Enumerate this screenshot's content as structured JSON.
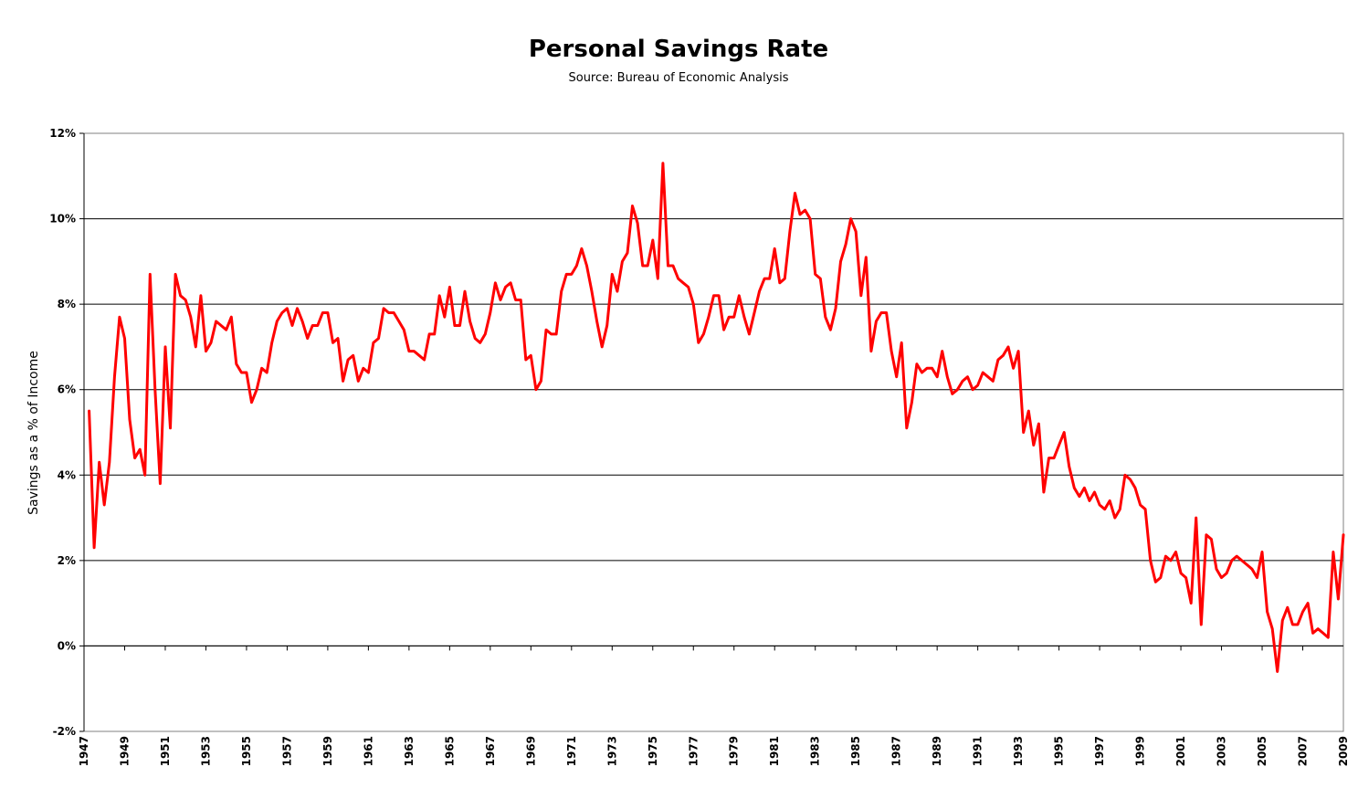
{
  "chart_data": {
    "type": "line",
    "title": "Personal Savings Rate",
    "subtitle": "Source: Bureau of Economic Analysis",
    "xlabel": "",
    "ylabel": "Savings as a % of Income",
    "ylim": [
      -2,
      12
    ],
    "xlim": [
      1947,
      2009
    ],
    "y_ticks": [
      -2,
      0,
      2,
      4,
      6,
      8,
      10,
      12
    ],
    "y_tick_labels": [
      "-2%",
      "0%",
      "2%",
      "4%",
      "6%",
      "8%",
      "10%",
      "12%"
    ],
    "x_ticks": [
      1947,
      1949,
      1951,
      1953,
      1955,
      1957,
      1959,
      1961,
      1963,
      1965,
      1967,
      1969,
      1971,
      1973,
      1975,
      1977,
      1979,
      1981,
      1983,
      1985,
      1987,
      1989,
      1991,
      1993,
      1995,
      1997,
      1999,
      2001,
      2003,
      2005,
      2007,
      2009
    ],
    "x_tick_labels": [
      "1947",
      "1949",
      "1951",
      "1953",
      "1955",
      "1957",
      "1959",
      "1961",
      "1963",
      "1965",
      "1967",
      "1969",
      "1971",
      "1973",
      "1975",
      "1977",
      "1979",
      "1981",
      "1983",
      "1985",
      "1987",
      "1989",
      "1991",
      "1993",
      "1995",
      "1997",
      "1999",
      "2001",
      "2003",
      "2005",
      "2007",
      "2009"
    ],
    "grid": "horizontal",
    "line_color": "#ff0000",
    "series": [
      {
        "name": "",
        "x": [
          1947.25,
          1947.5,
          1947.75,
          1948.0,
          1948.25,
          1948.5,
          1948.75,
          1949.0,
          1949.25,
          1949.5,
          1949.75,
          1950.0,
          1950.25,
          1950.5,
          1950.75,
          1951.0,
          1951.25,
          1951.5,
          1951.75,
          1952.0,
          1952.25,
          1952.5,
          1952.75,
          1953.0,
          1953.25,
          1953.5,
          1953.75,
          1954.0,
          1954.25,
          1954.5,
          1954.75,
          1955.0,
          1955.25,
          1955.5,
          1955.75,
          1956.0,
          1956.25,
          1956.5,
          1956.75,
          1957.0,
          1957.25,
          1957.5,
          1957.75,
          1958.0,
          1958.25,
          1958.5,
          1958.75,
          1959.0,
          1959.25,
          1959.5,
          1959.75,
          1960.0,
          1960.25,
          1960.5,
          1960.75,
          1961.0,
          1961.25,
          1961.5,
          1961.75,
          1962.0,
          1962.25,
          1962.5,
          1962.75,
          1963.0,
          1963.25,
          1963.5,
          1963.75,
          1964.0,
          1964.25,
          1964.5,
          1964.75,
          1965.0,
          1965.25,
          1965.5,
          1965.75,
          1966.0,
          1966.25,
          1966.5,
          1966.75,
          1967.0,
          1967.25,
          1967.5,
          1967.75,
          1968.0,
          1968.25,
          1968.5,
          1968.75,
          1969.0,
          1969.25,
          1969.5,
          1969.75,
          1970.0,
          1970.25,
          1970.5,
          1970.75,
          1971.0,
          1971.25,
          1971.5,
          1971.75,
          1972.0,
          1972.25,
          1972.5,
          1972.75,
          1973.0,
          1973.25,
          1973.5,
          1973.75,
          1974.0,
          1974.25,
          1974.5,
          1974.75,
          1975.0,
          1975.25,
          1975.5,
          1975.75,
          1976.0,
          1976.25,
          1976.5,
          1976.75,
          1977.0,
          1977.25,
          1977.5,
          1977.75,
          1978.0,
          1978.25,
          1978.5,
          1978.75,
          1979.0,
          1979.25,
          1979.5,
          1979.75,
          1980.0,
          1980.25,
          1980.5,
          1980.75,
          1981.0,
          1981.25,
          1981.5,
          1981.75,
          1982.0,
          1982.25,
          1982.5,
          1982.75,
          1983.0,
          1983.25,
          1983.5,
          1983.75,
          1984.0,
          1984.25,
          1984.5,
          1984.75,
          1985.0,
          1985.25,
          1985.5,
          1985.75,
          1986.0,
          1986.25,
          1986.5,
          1986.75,
          1987.0,
          1987.25,
          1987.5,
          1987.75,
          1988.0,
          1988.25,
          1988.5,
          1988.75,
          1989.0,
          1989.25,
          1989.5,
          1989.75,
          1990.0,
          1990.25,
          1990.5,
          1990.75,
          1991.0,
          1991.25,
          1991.5,
          1991.75,
          1992.0,
          1992.25,
          1992.5,
          1992.75,
          1993.0,
          1993.25,
          1993.5,
          1993.75,
          1994.0,
          1994.25,
          1994.5,
          1994.75,
          1995.0,
          1995.25,
          1995.5,
          1995.75,
          1996.0,
          1996.25,
          1996.5,
          1996.75,
          1997.0,
          1997.25,
          1997.5,
          1997.75,
          1998.0,
          1998.25,
          1998.5,
          1998.75,
          1999.0,
          1999.25,
          1999.5,
          1999.75,
          2000.0,
          2000.25,
          2000.5,
          2000.75,
          2001.0,
          2001.25,
          2001.5,
          2001.75,
          2002.0,
          2002.25,
          2002.5,
          2002.75,
          2003.0,
          2003.25,
          2003.5,
          2003.75,
          2004.0,
          2004.25,
          2004.5,
          2004.75,
          2005.0,
          2005.25,
          2005.5,
          2005.75,
          2006.0,
          2006.25,
          2006.5,
          2006.75,
          2007.0,
          2007.25,
          2007.5,
          2007.75,
          2008.0,
          2008.25,
          2008.5,
          2008.75,
          2009.0
        ],
        "values": [
          5.5,
          2.3,
          4.3,
          3.3,
          4.3,
          6.3,
          7.7,
          7.2,
          5.3,
          4.4,
          4.6,
          4.0,
          8.7,
          6.0,
          3.8,
          7.0,
          5.1,
          8.7,
          8.2,
          8.1,
          7.7,
          7.0,
          8.2,
          6.9,
          7.1,
          7.6,
          7.5,
          7.4,
          7.7,
          6.6,
          6.4,
          6.4,
          5.7,
          6.0,
          6.5,
          6.4,
          7.1,
          7.6,
          7.8,
          7.9,
          7.5,
          7.9,
          7.6,
          7.2,
          7.5,
          7.5,
          7.8,
          7.8,
          7.1,
          7.2,
          6.2,
          6.7,
          6.8,
          6.2,
          6.5,
          6.4,
          7.1,
          7.2,
          7.9,
          7.8,
          7.8,
          7.6,
          7.4,
          6.9,
          6.9,
          6.8,
          6.7,
          7.3,
          7.3,
          8.2,
          7.7,
          8.4,
          7.5,
          7.5,
          8.3,
          7.6,
          7.2,
          7.1,
          7.3,
          7.8,
          8.5,
          8.1,
          8.4,
          8.5,
          8.1,
          8.1,
          6.7,
          6.8,
          6.0,
          6.2,
          7.4,
          7.3,
          7.3,
          8.3,
          8.7,
          8.7,
          8.9,
          9.3,
          8.9,
          8.3,
          7.6,
          7.0,
          7.5,
          8.7,
          8.3,
          9.0,
          9.2,
          10.3,
          9.9,
          8.9,
          8.9,
          9.5,
          8.6,
          11.3,
          8.9,
          8.9,
          8.6,
          8.5,
          8.4,
          8.0,
          7.1,
          7.3,
          7.7,
          8.2,
          8.2,
          7.4,
          7.7,
          7.7,
          8.2,
          7.7,
          7.3,
          7.8,
          8.3,
          8.6,
          8.6,
          9.3,
          8.5,
          8.6,
          9.7,
          10.6,
          10.1,
          10.2,
          10.0,
          8.7,
          8.6,
          7.7,
          7.4,
          7.9,
          9.0,
          9.4,
          10.0,
          9.7,
          8.2,
          9.1,
          6.9,
          7.6,
          7.8,
          7.8,
          6.9,
          6.3,
          7.1,
          5.1,
          5.7,
          6.6,
          6.4,
          6.5,
          6.5,
          6.3,
          6.9,
          6.3,
          5.9,
          6.0,
          6.2,
          6.3,
          6.0,
          6.1,
          6.4,
          6.3,
          6.2,
          6.7,
          6.8,
          7.0,
          6.5,
          6.9,
          5.0,
          5.5,
          4.7,
          5.2,
          3.6,
          4.4,
          4.4,
          4.7,
          5.0,
          4.2,
          3.7,
          3.5,
          3.7,
          3.4,
          3.6,
          3.3,
          3.2,
          3.4,
          3.0,
          3.2,
          4.0,
          3.9,
          3.7,
          3.3,
          3.2,
          2.0,
          1.5,
          1.6,
          2.1,
          2.0,
          2.2,
          1.7,
          1.6,
          1.0,
          3.0,
          0.5,
          2.6,
          2.5,
          1.8,
          1.6,
          1.7,
          2.0,
          2.1,
          2.0,
          1.9,
          1.8,
          1.6,
          2.2,
          0.8,
          0.4,
          -0.6,
          0.6,
          0.9,
          0.5,
          0.5,
          0.8,
          1.0,
          0.3,
          0.4,
          0.3,
          0.2,
          2.2,
          1.1,
          2.6
        ]
      }
    ]
  }
}
